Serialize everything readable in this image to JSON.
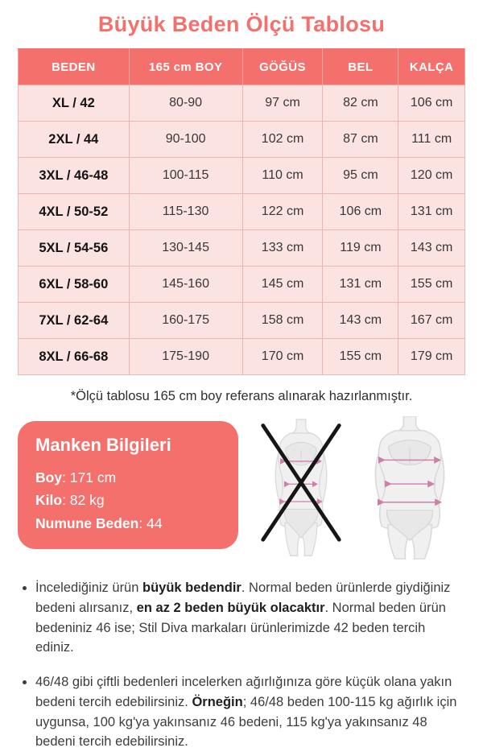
{
  "page": {
    "title": "Büyük Beden Ölçü Tablosu",
    "footnote": "*Ölçü tablosu 165 cm boy referans alınarak hazırlanmıştır."
  },
  "colors": {
    "accent_coral": "#F3706C",
    "row_pink": "#FBE3E1",
    "grid_line": "#EDB4B1",
    "measure_line_pink": "#CE7FA9",
    "x_mark_black": "#161616"
  },
  "size_table": {
    "headers": [
      "BEDEN",
      "165 cm BOY",
      "GÖĞÜS",
      "BEL",
      "KALÇA"
    ],
    "rows": [
      [
        "XL / 42",
        "80-90",
        "97 cm",
        "82 cm",
        "106 cm"
      ],
      [
        "2XL / 44",
        "90-100",
        "102 cm",
        "87 cm",
        "111 cm"
      ],
      [
        "3XL / 46-48",
        "100-115",
        "110 cm",
        "95 cm",
        "120 cm"
      ],
      [
        "4XL / 50-52",
        "115-130",
        "122 cm",
        "106 cm",
        "131 cm"
      ],
      [
        "5XL / 54-56",
        "130-145",
        "133 cm",
        "119 cm",
        "143 cm"
      ],
      [
        "6XL / 58-60",
        "145-160",
        "145 cm",
        "131 cm",
        "155 cm"
      ],
      [
        "7XL / 62-64",
        "160-175",
        "158 cm",
        "143 cm",
        "167 cm"
      ],
      [
        "8XL / 66-68",
        "175-190",
        "170 cm",
        "155 cm",
        "179 cm"
      ]
    ]
  },
  "model_info": {
    "title": "Manken Bilgileri",
    "lines": [
      {
        "label": "Boy",
        "value": ": 171 cm"
      },
      {
        "label": "Kilo",
        "value": ": 82 kg"
      },
      {
        "label": "Numune Beden",
        "value": ": 44"
      }
    ]
  },
  "figures": {
    "left": "crossed-out-slim-figure",
    "right": "plus-size-figure-with-measurement-lines"
  },
  "notes": [
    {
      "parts": [
        {
          "t": "İncelediğiniz ürün ",
          "b": false
        },
        {
          "t": "büyük bedendir",
          "b": true
        },
        {
          "t": ". Normal beden ürünlerde giydiğiniz bedeni alırsanız, ",
          "b": false
        },
        {
          "t": "en az 2 beden büyük olacaktır",
          "b": true
        },
        {
          "t": ". Normal beden ürün bedeniniz 46 ise; Stil Diva markaları ürünlerimizde 42 beden tercih ediniz.",
          "b": false
        }
      ]
    },
    {
      "parts": [
        {
          "t": "46/48 gibi çiftli bedenleri incelerken ağırlığınıza göre küçük olana yakın bedeni tercih edebilirsiniz. ",
          "b": false
        },
        {
          "t": "Örneğin",
          "b": true
        },
        {
          "t": "; 46/48 beden 100-115 kg ağırlık için uygunsa, 100 kg'ya yakınsanız 46 bedeni, 115 kg'ya yakınsanız 48 bedeni tercih edebilirsiniz.",
          "b": false
        }
      ]
    }
  ]
}
